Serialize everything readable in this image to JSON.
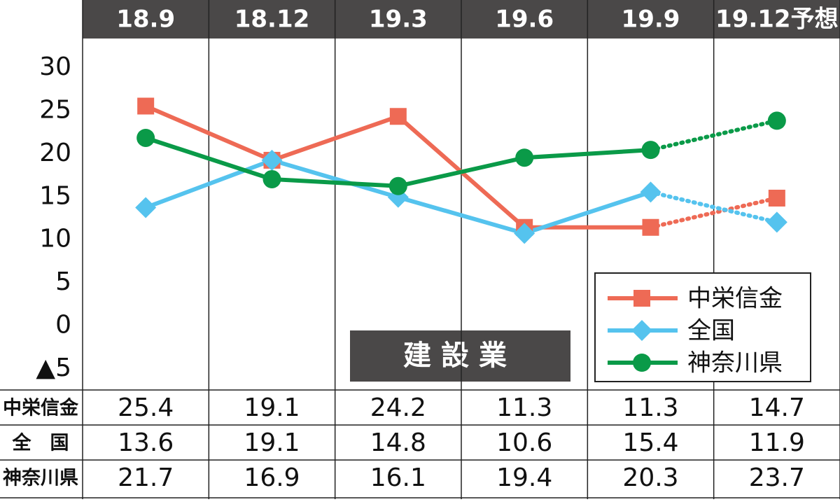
{
  "chart_data": {
    "type": "line",
    "annotation": "建設業",
    "categories": [
      "18.9",
      "18.12",
      "19.3",
      "19.6",
      "19.9",
      "19.12予想"
    ],
    "series": [
      {
        "name": "中栄信金",
        "table_label": "中栄信金",
        "color": "#ee6a55",
        "marker": "square",
        "values": [
          25.4,
          19.1,
          24.2,
          11.3,
          11.3,
          14.7
        ]
      },
      {
        "name": "全国",
        "table_label": "全　国",
        "color": "#55c3ee",
        "marker": "diamond",
        "values": [
          13.6,
          19.1,
          14.8,
          10.6,
          15.4,
          11.9
        ]
      },
      {
        "name": "神奈川県",
        "table_label": "神奈川県",
        "color": "#0a9a48",
        "marker": "circle",
        "values": [
          21.7,
          16.9,
          16.1,
          19.4,
          20.3,
          23.7
        ]
      }
    ],
    "ylim": [
      -5,
      30
    ],
    "yticks": [
      {
        "value": -5,
        "label": "▲5"
      },
      0,
      5,
      10,
      15,
      20,
      25,
      30
    ],
    "legend": "lower right"
  }
}
